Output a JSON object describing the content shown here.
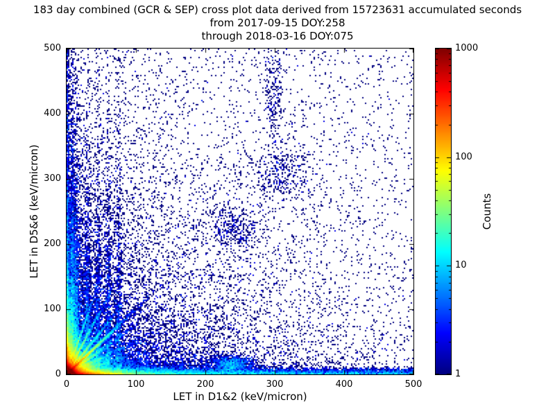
{
  "title": {
    "line1": "183 day combined (GCR & SEP) cross plot data derived from 15723631 accumulated seconds",
    "line2": "from 2017-09-15 DOY:258",
    "line3": "through 2018-03-16 DOY:075"
  },
  "chart_data": {
    "type": "heatmap",
    "title": "183 day combined (GCR & SEP) cross plot data derived from 15723631 accumulated seconds from 2017-09-15 DOY:258 through 2018-03-16 DOY:075",
    "period_days": 183,
    "accumulated_seconds": 15723631,
    "start": "2017-09-15 DOY:258",
    "end": "2018-03-16 DOY:075",
    "xlabel": "LET in D1&2 (keV/micron)",
    "ylabel": "LET in D5&6 (keV/micron)",
    "xlim": [
      0,
      500
    ],
    "ylim": [
      0,
      500
    ],
    "xticks": [
      0,
      100,
      200,
      300,
      400,
      500
    ],
    "yticks": [
      0,
      100,
      200,
      300,
      400,
      500
    ],
    "grid": false,
    "legend": "colorbar-right",
    "colorbar": {
      "label": "Counts",
      "scale": "log",
      "min": 1,
      "max": 1000,
      "ticks": [
        1,
        10,
        100,
        1000
      ],
      "colormap": "jet",
      "colormap_stops": [
        [
          0,
          [
            0,
            0,
            128
          ]
        ],
        [
          0.125,
          [
            0,
            0,
            255
          ]
        ],
        [
          0.375,
          [
            0,
            255,
            255
          ]
        ],
        [
          0.625,
          [
            255,
            255,
            0
          ]
        ],
        [
          0.875,
          [
            255,
            0,
            0
          ]
        ],
        [
          1,
          [
            128,
            0,
            0
          ]
        ]
      ]
    },
    "description": "Log-color 2D histogram cross plot of particle LET in detectors D1&2 vs D5&6. Very hot (red/yellow, counts >100) core at the origin, bright cyan/green streaks along both axes and along the y=x diagonal out to ~60 keV/micron, a fan of diagonal rays of different slopes from the origin, blue vertical striations near x=5-80 reaching y~300+, a sparse blue band along the bottom out to x=500 with a clump near (240,16), sparse clumps near (240,220) and (312,306), a loose vertical column near x=300 reaching y~500, and isolated single-count (dark blue) points scattered over the whole plane.",
    "distribution_clusters": [
      {
        "name": "origin-core",
        "kind": "exp2d",
        "count": 52000,
        "sx": 4,
        "sy": 4
      },
      {
        "name": "bottom-left-streak",
        "kind": "exp2d",
        "count": 16000,
        "sx": 26,
        "sy": 3
      },
      {
        "name": "left-bottom-streak",
        "kind": "exp2d",
        "count": 10000,
        "sx": 3,
        "sy": 26
      },
      {
        "name": "near-origin-haze",
        "kind": "exp2d",
        "count": 14000,
        "sx": 16,
        "sy": 16
      },
      {
        "name": "diag-slope-1",
        "kind": "ray",
        "count": 7000,
        "slope": 1.0,
        "len": 20,
        "spread": 0.8
      },
      {
        "name": "diag-slope-0.75",
        "kind": "ray",
        "count": 2600,
        "slope": 0.75,
        "len": 22,
        "spread": 0.9
      },
      {
        "name": "diag-slope-1.33",
        "kind": "ray",
        "count": 2600,
        "slope": 1.33,
        "len": 18,
        "spread": 0.9
      },
      {
        "name": "diag-slope-0.5",
        "kind": "ray",
        "count": 2200,
        "slope": 0.5,
        "len": 26,
        "spread": 1.0
      },
      {
        "name": "diag-slope-2",
        "kind": "ray",
        "count": 2200,
        "slope": 2.0,
        "len": 15,
        "spread": 1.0
      },
      {
        "name": "diag-slope-3",
        "kind": "ray",
        "count": 1500,
        "slope": 3.0,
        "len": 12,
        "spread": 1.1
      },
      {
        "name": "diag-slope-0.33",
        "kind": "ray",
        "count": 1500,
        "slope": 0.33,
        "len": 30,
        "spread": 1.0
      },
      {
        "name": "column-x8",
        "kind": "vband",
        "count": 2600,
        "x": 8,
        "xs": 2,
        "yscale": 120
      },
      {
        "name": "column-x14",
        "kind": "vband",
        "count": 1600,
        "x": 14,
        "xs": 2.5,
        "yscale": 110
      },
      {
        "name": "column-x30",
        "kind": "vband",
        "count": 1000,
        "x": 30,
        "xs": 2.5,
        "yscale": 100
      },
      {
        "name": "column-x45",
        "kind": "vband",
        "count": 900,
        "x": 45,
        "xs": 2.5,
        "yscale": 100
      },
      {
        "name": "column-x60",
        "kind": "vband",
        "count": 800,
        "x": 60,
        "xs": 2.5,
        "yscale": 110
      },
      {
        "name": "column-x75",
        "kind": "vband",
        "count": 700,
        "x": 75,
        "xs": 2.5,
        "yscale": 100
      },
      {
        "name": "bottom-band",
        "kind": "hband",
        "count": 5000,
        "y": 4,
        "ys": 3,
        "xmax": 500,
        "pow": 1.6
      },
      {
        "name": "bottom-edge",
        "kind": "hband",
        "count": 2500,
        "y": 1.5,
        "ys": 1,
        "xmax": 500,
        "pow": 1.2
      },
      {
        "name": "left-edge",
        "kind": "vband",
        "count": 1600,
        "x": 1.5,
        "xs": 1,
        "yscale": 260
      },
      {
        "name": "clump-240-16",
        "kind": "blob",
        "count": 1100,
        "x": 238,
        "y": 16,
        "sx": 14,
        "sy": 6
      },
      {
        "name": "clump-242-222",
        "kind": "blob",
        "count": 320,
        "x": 242,
        "y": 222,
        "sx": 20,
        "sy": 16
      },
      {
        "name": "clump-312-306",
        "kind": "blob",
        "count": 280,
        "x": 312,
        "y": 306,
        "sx": 22,
        "sy": 20
      },
      {
        "name": "column-x300-high",
        "kind": "blob",
        "count": 240,
        "x": 300,
        "y": 430,
        "sx": 7,
        "sy": 55
      },
      {
        "name": "left-haze",
        "kind": "exp2d",
        "count": 5200,
        "sx": 12,
        "sy": 95
      },
      {
        "name": "bottom-haze",
        "kind": "exp2d",
        "count": 5200,
        "sx": 95,
        "sy": 12
      },
      {
        "name": "background-falloff",
        "kind": "exp2d",
        "count": 8000,
        "sx": 130,
        "sy": 130
      },
      {
        "name": "sparse-uniform",
        "kind": "uniform",
        "count": 2600
      }
    ]
  }
}
